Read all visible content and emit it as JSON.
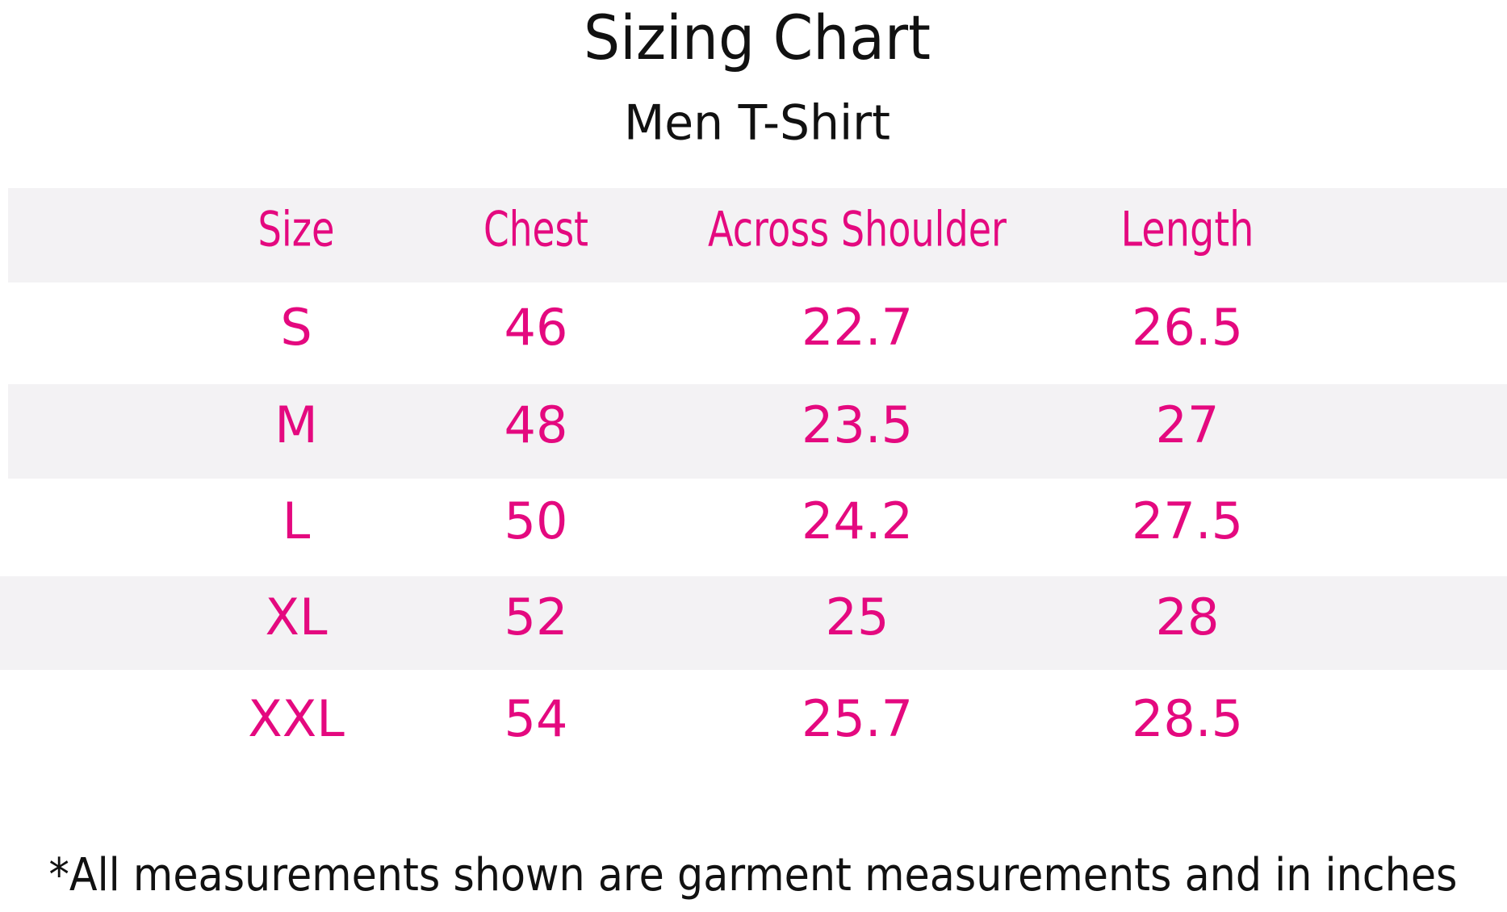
{
  "header": {
    "title": "Sizing Chart",
    "subtitle": "Men T-Shirt"
  },
  "table": {
    "columns": [
      "Size",
      "Chest",
      "Across Shoulder",
      "Length"
    ],
    "rows": [
      [
        "S",
        "46",
        "22.7",
        "26.5"
      ],
      [
        "M",
        "48",
        "23.5",
        "27"
      ],
      [
        "L",
        "50",
        "24.2",
        "27.5"
      ],
      [
        "XL",
        "52",
        "25",
        "28"
      ],
      [
        "XXL",
        "54",
        "25.7",
        "28.5"
      ]
    ]
  },
  "footnote": "*All measurements shown are garment measurements and in inches"
}
